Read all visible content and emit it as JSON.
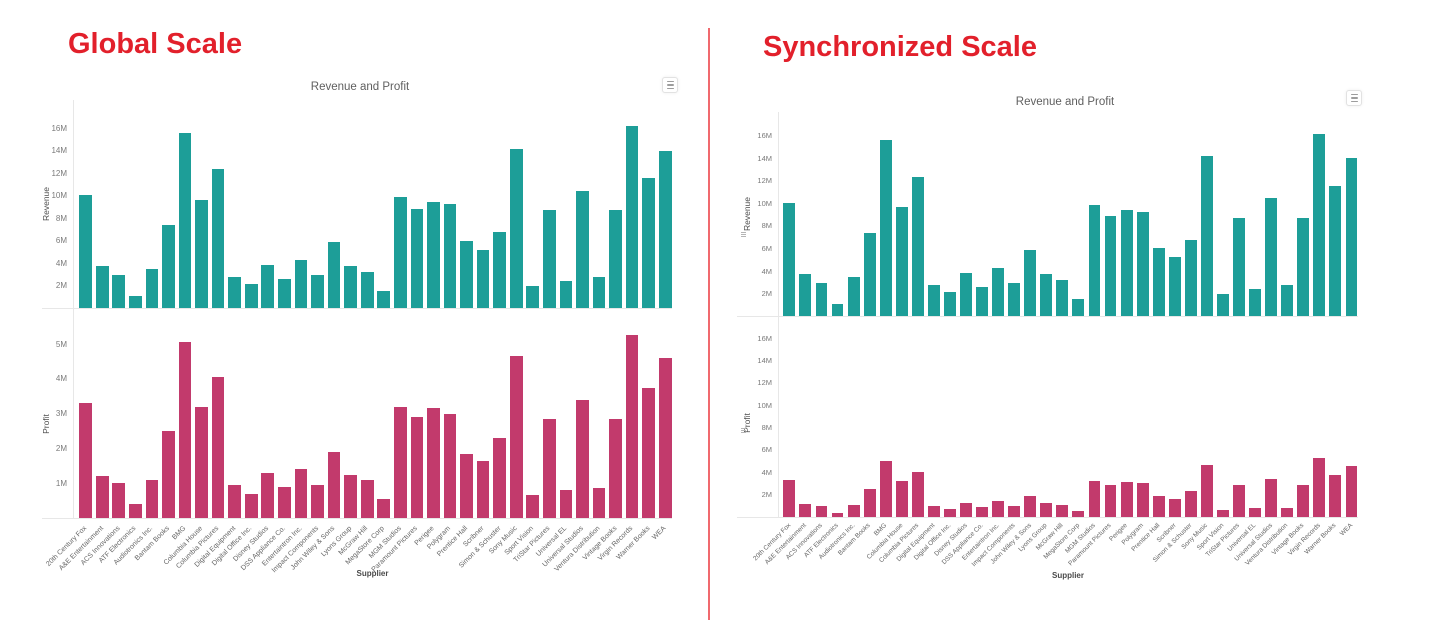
{
  "panels": [
    {
      "heading": "Global Scale"
    },
    {
      "heading": "Synchronized Scale"
    }
  ],
  "colors": {
    "heading_red": "#e2202b",
    "divider_red": "#f0696e",
    "revenue_teal": "#1d9e98",
    "profit_pink": "#c23a6c"
  },
  "icons": {
    "more_options": "menu-icon",
    "axis_sync": "axis-sync-icon"
  },
  "chart_data": [
    {
      "type": "bar",
      "panel": "Global Scale",
      "title": "Revenue and Profit",
      "xlabel": "Supplier",
      "grid": false,
      "legend": "none",
      "categories": [
        "20th Century Fox",
        "A&E Entertainment",
        "ACS Innovations",
        "ATF Electronics",
        "Audiotronics Inc.",
        "Bantam Books",
        "BMG",
        "Columbia House",
        "Columbia Pictures",
        "Digital Equipment",
        "Digital Office Inc.",
        "Disney Studios",
        "DSS Appliance Co.",
        "Entertaintron Inc.",
        "Impact Components",
        "John Wiley & Sons",
        "Lyons Group",
        "McGraw Hill",
        "MegaStore Corp",
        "MGM Studios",
        "Paramount Pictures",
        "Perigee",
        "Polygram",
        "Prentice Hall",
        "Scribner",
        "Simon & Schuster",
        "Sony Music",
        "Sport Vision",
        "TriStar Pictures",
        "Universal EL",
        "Universal Studios",
        "Ventura Distribution",
        "Vintage Books",
        "Virgin Records",
        "Warner Books",
        "WEA"
      ],
      "series": [
        {
          "name": "Revenue",
          "unit": "M",
          "color": "#1d9e98",
          "ylim": [
            0,
            17.5
          ],
          "ytick_labels": [
            "2M",
            "4M",
            "6M",
            "8M",
            "10M",
            "12M",
            "14M",
            "16M"
          ],
          "values": [
            10.05,
            3.7,
            2.9,
            1.1,
            3.45,
            7.4,
            15.6,
            9.65,
            12.35,
            2.8,
            2.15,
            3.85,
            2.55,
            4.25,
            2.9,
            5.9,
            3.7,
            3.2,
            1.5,
            9.85,
            8.85,
            9.45,
            9.25,
            6.0,
            5.2,
            6.75,
            14.2,
            2.0,
            8.75,
            2.4,
            10.45,
            2.75,
            8.7,
            16.2,
            11.55,
            14.0
          ]
        },
        {
          "name": "Profit",
          "unit": "M",
          "color": "#c23a6c",
          "ylim": [
            0,
            5.4
          ],
          "ytick_labels": [
            "1M",
            "2M",
            "3M",
            "4M",
            "5M"
          ],
          "values": [
            3.3,
            1.2,
            1.0,
            0.4,
            1.1,
            2.5,
            5.05,
            3.2,
            4.05,
            0.95,
            0.7,
            1.3,
            0.9,
            1.4,
            0.95,
            1.9,
            1.25,
            1.1,
            0.55,
            3.2,
            2.9,
            3.15,
            3.0,
            1.85,
            1.65,
            2.3,
            4.65,
            0.65,
            2.85,
            0.8,
            3.4,
            0.85,
            2.85,
            5.25,
            3.75,
            4.6
          ]
        }
      ]
    },
    {
      "type": "bar",
      "panel": "Synchronized Scale",
      "title": "Revenue and Profit",
      "xlabel": "Supplier",
      "grid": false,
      "legend": "none",
      "categories": [
        "20th Century Fox",
        "A&E Entertainment",
        "ACS Innovations",
        "ATF Electronics",
        "Audiotronics Inc.",
        "Bantam Books",
        "BMG",
        "Columbia House",
        "Columbia Pictures",
        "Digital Equipment",
        "Digital Office Inc.",
        "Disney Studios",
        "DSS Appliance Co.",
        "Entertaintron Inc.",
        "Impact Components",
        "John Wiley & Sons",
        "Lyons Group",
        "McGraw Hill",
        "MegaStore Corp",
        "MGM Studios",
        "Paramount Pictures",
        "Perigee",
        "Polygram",
        "Prentice Hall",
        "Scribner",
        "Simon & Schuster",
        "Sony Music",
        "Sport Vision",
        "TriStar Pictures",
        "Universal EL",
        "Universal Studios",
        "Ventura Distribution",
        "Vintage Books",
        "Virgin Records",
        "Warner Books",
        "WEA"
      ],
      "series": [
        {
          "name": "Revenue",
          "unit": "M",
          "color": "#1d9e98",
          "ylim": [
            0,
            17.5
          ],
          "ytick_labels": [
            "2M",
            "4M",
            "6M",
            "8M",
            "10M",
            "12M",
            "14M",
            "16M"
          ],
          "values": [
            10.05,
            3.7,
            2.9,
            1.1,
            3.45,
            7.4,
            15.6,
            9.65,
            12.35,
            2.8,
            2.15,
            3.85,
            2.55,
            4.25,
            2.9,
            5.9,
            3.7,
            3.2,
            1.5,
            9.85,
            8.85,
            9.45,
            9.25,
            6.0,
            5.2,
            6.75,
            14.2,
            2.0,
            8.75,
            2.4,
            10.45,
            2.75,
            8.7,
            16.2,
            11.55,
            14.0
          ]
        },
        {
          "name": "Profit",
          "unit": "M",
          "color": "#c23a6c",
          "ylim": [
            0,
            17.5
          ],
          "ytick_labels": [
            "2M",
            "4M",
            "6M",
            "8M",
            "10M",
            "12M",
            "14M",
            "16M"
          ],
          "values": [
            3.3,
            1.2,
            1.0,
            0.4,
            1.1,
            2.5,
            5.05,
            3.2,
            4.05,
            0.95,
            0.7,
            1.3,
            0.9,
            1.4,
            0.95,
            1.9,
            1.25,
            1.1,
            0.55,
            3.2,
            2.9,
            3.15,
            3.0,
            1.85,
            1.65,
            2.3,
            4.65,
            0.65,
            2.85,
            0.8,
            3.4,
            0.85,
            2.85,
            5.25,
            3.75,
            4.6
          ]
        }
      ]
    }
  ]
}
